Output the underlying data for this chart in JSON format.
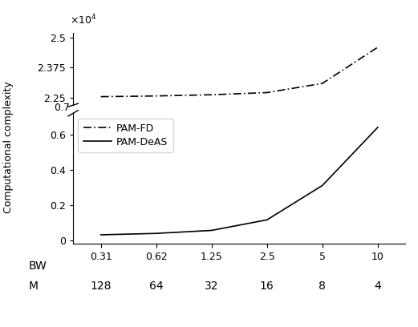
{
  "x_indices": [
    1,
    2,
    3,
    4,
    5,
    6
  ],
  "bw_labels": [
    "0.31",
    "0.62",
    "1.25",
    "2.5",
    "5",
    "10"
  ],
  "m_labels": [
    "128",
    "64",
    "32",
    "16",
    "8",
    "4"
  ],
  "pam_fd": [
    2.255,
    2.258,
    2.263,
    2.272,
    2.31,
    2.46
  ],
  "pam_deas": [
    0.03,
    0.038,
    0.055,
    0.115,
    0.31,
    0.64
  ],
  "upper_ytick_vals": [
    2.25,
    2.375,
    2.5
  ],
  "upper_ytick_labels": [
    "2.25",
    "2.375",
    "2.5"
  ],
  "upper_ylim": [
    2.22,
    2.52
  ],
  "lower_ytick_vals": [
    0.0,
    0.2,
    0.4,
    0.6
  ],
  "lower_ytick_labels": [
    "0",
    "0.2",
    "0.4",
    "0.6"
  ],
  "lower_ylim": [
    -0.02,
    0.72
  ],
  "ylabel": "Computational complexity",
  "line_color": "#000000",
  "background_color": "#ffffff",
  "legend_labels": [
    "PAM-FD",
    "PAM-DeAS"
  ]
}
